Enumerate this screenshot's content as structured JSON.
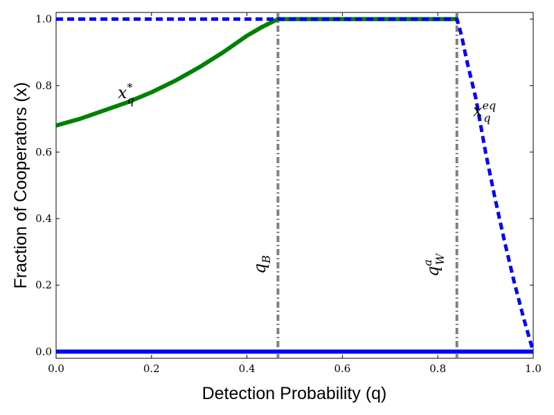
{
  "chart_data": {
    "type": "line",
    "xlabel": "Detection Probability (q)",
    "ylabel": "Fraction of Cooperators (x)",
    "xlim": [
      0.0,
      1.0
    ],
    "ylim": [
      -0.02,
      1.02
    ],
    "grid": false,
    "legend": "none",
    "x_ticks": [
      "0.0",
      "0.2",
      "0.4",
      "0.6",
      "0.8",
      "1.0"
    ],
    "y_ticks": [
      "0.0",
      "0.2",
      "0.4",
      "0.6",
      "0.8",
      "1.0"
    ],
    "series": [
      {
        "label": "x*_q",
        "color": "#008000",
        "style": "solid",
        "x": [
          0.0,
          0.05,
          0.1,
          0.15,
          0.2,
          0.25,
          0.3,
          0.35,
          0.4,
          0.43,
          0.465,
          0.5,
          0.6,
          0.7,
          0.8,
          0.84
        ],
        "y": [
          0.68,
          0.7,
          0.725,
          0.75,
          0.78,
          0.815,
          0.855,
          0.9,
          0.95,
          0.975,
          1.0,
          1.0,
          1.0,
          1.0,
          1.0,
          1.0
        ]
      },
      {
        "label": "x^eq_q",
        "color": "#0000ff",
        "style": "dashed",
        "x": [
          0.0,
          0.2,
          0.4,
          0.465,
          0.6,
          0.8,
          0.84,
          0.85,
          0.86,
          0.88,
          0.9,
          0.92,
          0.94,
          0.96,
          0.98,
          1.0
        ],
        "y": [
          1.0,
          1.0,
          1.0,
          1.0,
          1.0,
          1.0,
          1.0,
          0.95,
          0.88,
          0.76,
          0.6,
          0.46,
          0.33,
          0.21,
          0.1,
          0.0
        ]
      },
      {
        "label": "x = 0",
        "color": "#0000ff",
        "style": "solid",
        "x": [
          0.0,
          1.0
        ],
        "y": [
          0.0,
          0.0
        ]
      }
    ],
    "vlines": [
      {
        "x": 0.465,
        "label": "q_B",
        "color": "#808080",
        "style": "dashdot"
      },
      {
        "x": 0.84,
        "label": "q^a_W",
        "color": "#808080",
        "style": "dashdot"
      }
    ],
    "annotations": {
      "green_curve_base": "x",
      "green_curve_sub": "q",
      "green_curve_sup": "*",
      "blue_curve_base": "x",
      "blue_curve_sub": "q",
      "blue_curve_sup": "eq",
      "vline1_base": "q",
      "vline1_sub": "B",
      "vline2_base": "q",
      "vline2_sub": "W",
      "vline2_sup": "a"
    }
  }
}
